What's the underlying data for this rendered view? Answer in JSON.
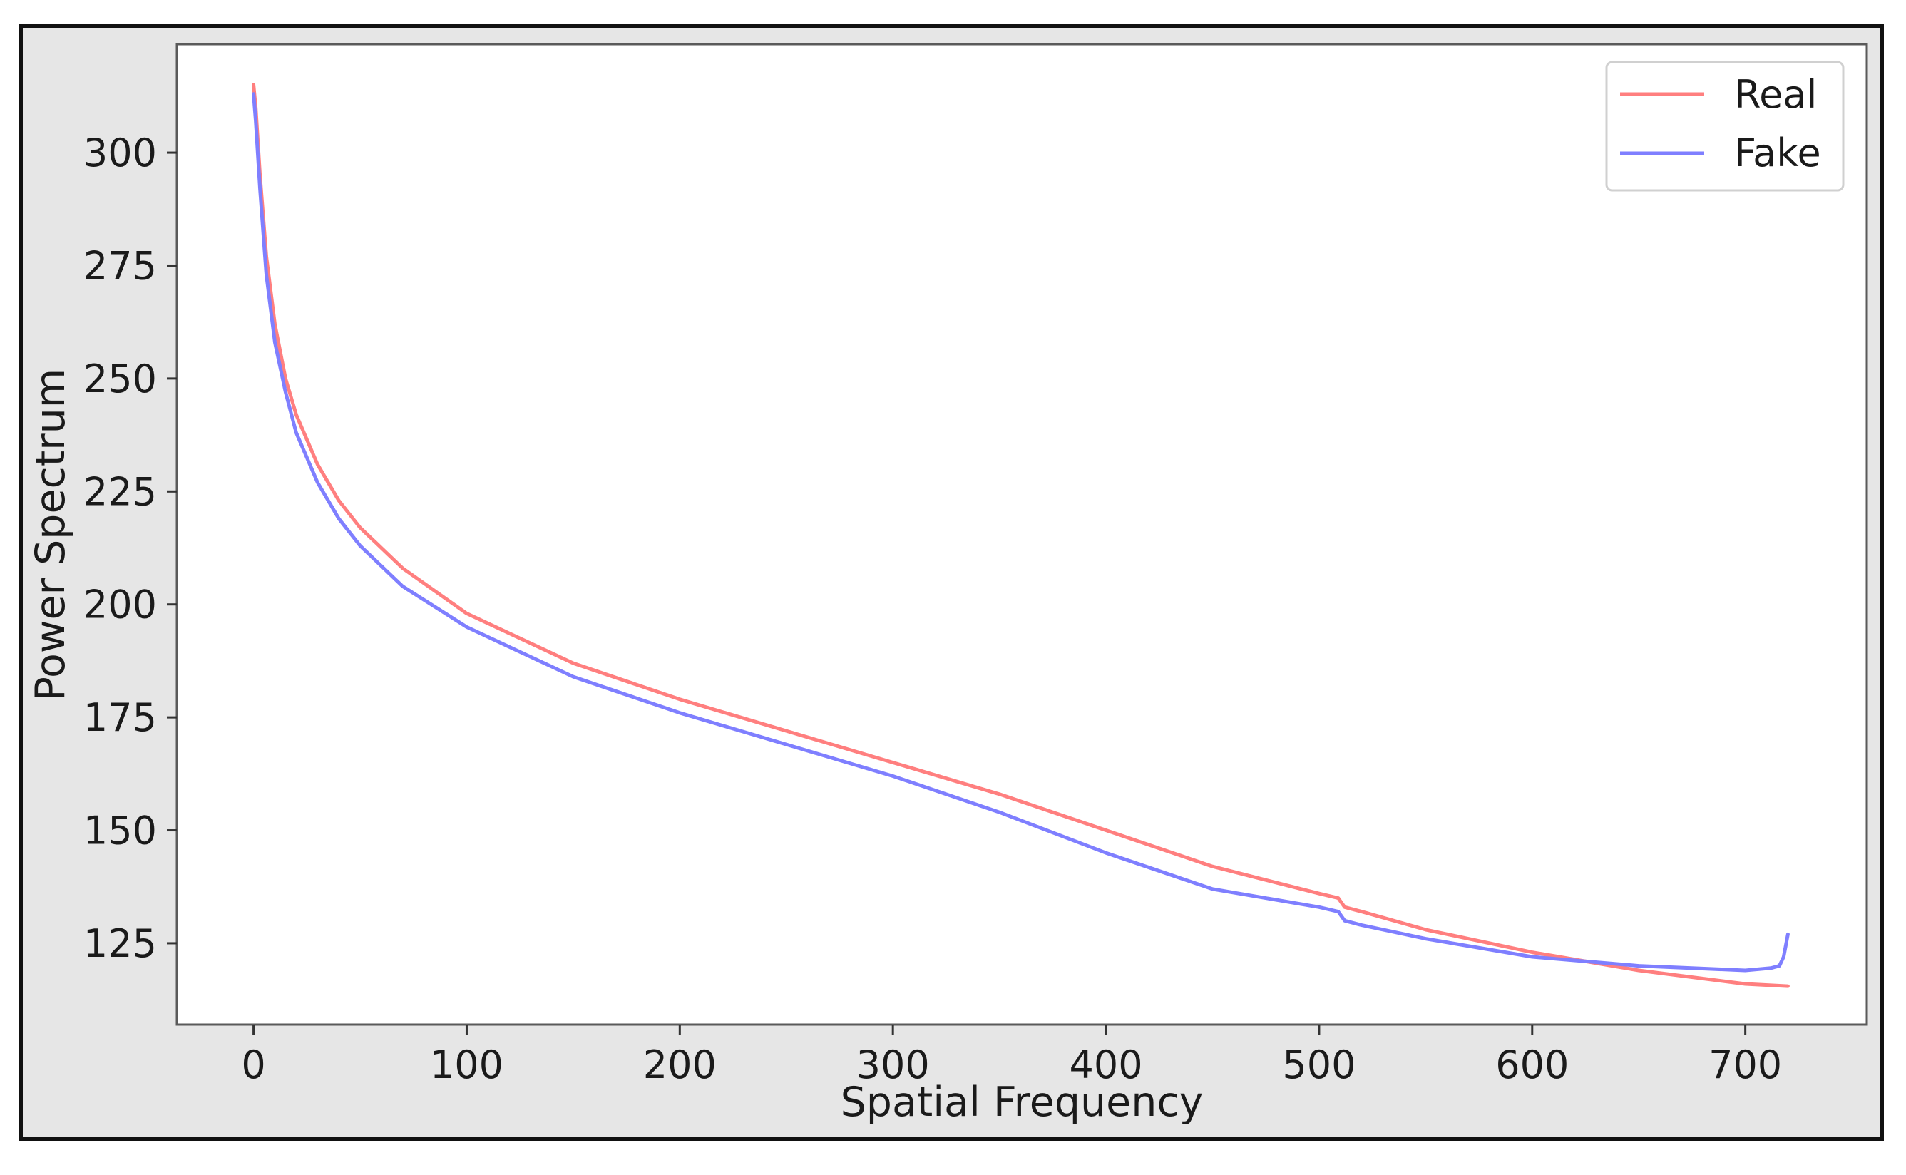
{
  "chart_data": {
    "type": "line",
    "title": "",
    "xlabel": "Spatial Frequency",
    "ylabel": "Power Spectrum",
    "xlim": [
      -36,
      757
    ],
    "ylim": [
      107,
      324
    ],
    "xticks": [
      0,
      100,
      200,
      300,
      400,
      500,
      600,
      700
    ],
    "yticks": [
      125,
      150,
      175,
      200,
      225,
      250,
      275,
      300
    ],
    "grid": false,
    "legend_position": "top-right",
    "series": [
      {
        "name": "Real",
        "color": "#ff7f7f",
        "x": [
          0,
          1,
          3,
          6,
          10,
          15,
          20,
          30,
          40,
          50,
          70,
          100,
          150,
          200,
          250,
          300,
          350,
          400,
          450,
          500,
          509,
          512,
          520,
          550,
          600,
          650,
          700,
          720
        ],
        "y": [
          315,
          310,
          295,
          277,
          262,
          250,
          242,
          231,
          223,
          217,
          208,
          198,
          187,
          179,
          172,
          165,
          158,
          150,
          142,
          136,
          135,
          133,
          132,
          128,
          123,
          119,
          116,
          115.5
        ]
      },
      {
        "name": "Fake",
        "color": "#7f7fff",
        "x": [
          0,
          1,
          3,
          6,
          10,
          15,
          20,
          30,
          40,
          50,
          70,
          100,
          150,
          200,
          250,
          300,
          350,
          400,
          450,
          500,
          509,
          512,
          520,
          550,
          600,
          650,
          700,
          712,
          716,
          718,
          720
        ],
        "y": [
          313,
          307,
          292,
          273,
          258,
          247,
          238,
          227,
          219,
          213,
          204,
          195,
          184,
          176,
          169,
          162,
          154,
          145,
          137,
          133,
          132,
          130,
          129,
          126,
          122,
          120,
          119,
          119.5,
          120,
          122,
          127
        ]
      }
    ]
  }
}
